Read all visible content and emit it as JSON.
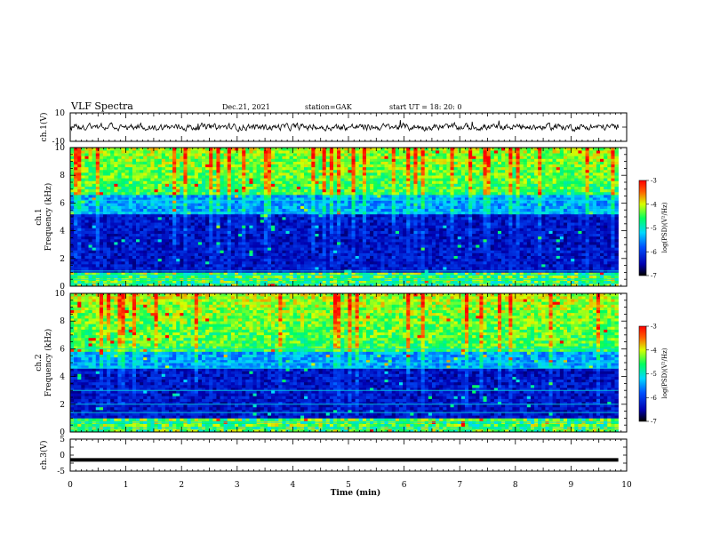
{
  "header": {
    "title": "VLF Spectra",
    "date": "Dec.21, 2021",
    "station": "station=GAK",
    "start": "start  UT =   18: 20: 0"
  },
  "chart_data": [
    {
      "type": "line",
      "id": "ch1-voltage",
      "ylabel": "ch.1(V)",
      "ylim": [
        -10,
        10
      ],
      "y_ticks": [
        "10",
        "-10"
      ],
      "xlim": [
        0,
        10
      ],
      "data_end_min": 9.85,
      "description_color": "#000000"
    },
    {
      "type": "heatmap",
      "id": "ch1-spectrogram",
      "ylabel": "Frequency (kHz)",
      "channel": "ch.1",
      "ylim": [
        0,
        10
      ],
      "y_ticks": [
        "0",
        "2",
        "4",
        "6",
        "8",
        "10"
      ],
      "xlim": [
        0,
        10
      ],
      "data_end_min": 9.85,
      "colorbar": {
        "label": "log(PSD)(V²/Hz)",
        "ticks": [
          "-3",
          "-4",
          "-5",
          "-6",
          "-7"
        ],
        "range": [
          -7,
          -3
        ]
      }
    },
    {
      "type": "heatmap",
      "id": "ch2-spectrogram",
      "ylabel": "Frequency (kHz)",
      "channel": "ch.2",
      "ylim": [
        0,
        10
      ],
      "y_ticks": [
        "0",
        "2",
        "4",
        "6",
        "8",
        "10"
      ],
      "xlim": [
        0,
        10
      ],
      "data_end_min": 9.85,
      "colorbar": {
        "label": "log(PSD)(V²/Hz)",
        "ticks": [
          "-3",
          "-4",
          "-5",
          "-6",
          "-7"
        ],
        "range": [
          -7,
          -3
        ]
      }
    },
    {
      "type": "line",
      "id": "ch3-voltage",
      "ylabel": "ch.3(V)",
      "ylim": [
        -5,
        5
      ],
      "y_ticks": [
        "5",
        "0",
        "-5"
      ],
      "xlim": [
        0,
        10
      ],
      "data_end_min": 9.85,
      "constant_value": -1.5
    }
  ],
  "x_axis": {
    "label": "Time  (min)",
    "ticks": [
      "0",
      "1",
      "2",
      "3",
      "4",
      "5",
      "6",
      "7",
      "8",
      "9",
      "10"
    ]
  }
}
